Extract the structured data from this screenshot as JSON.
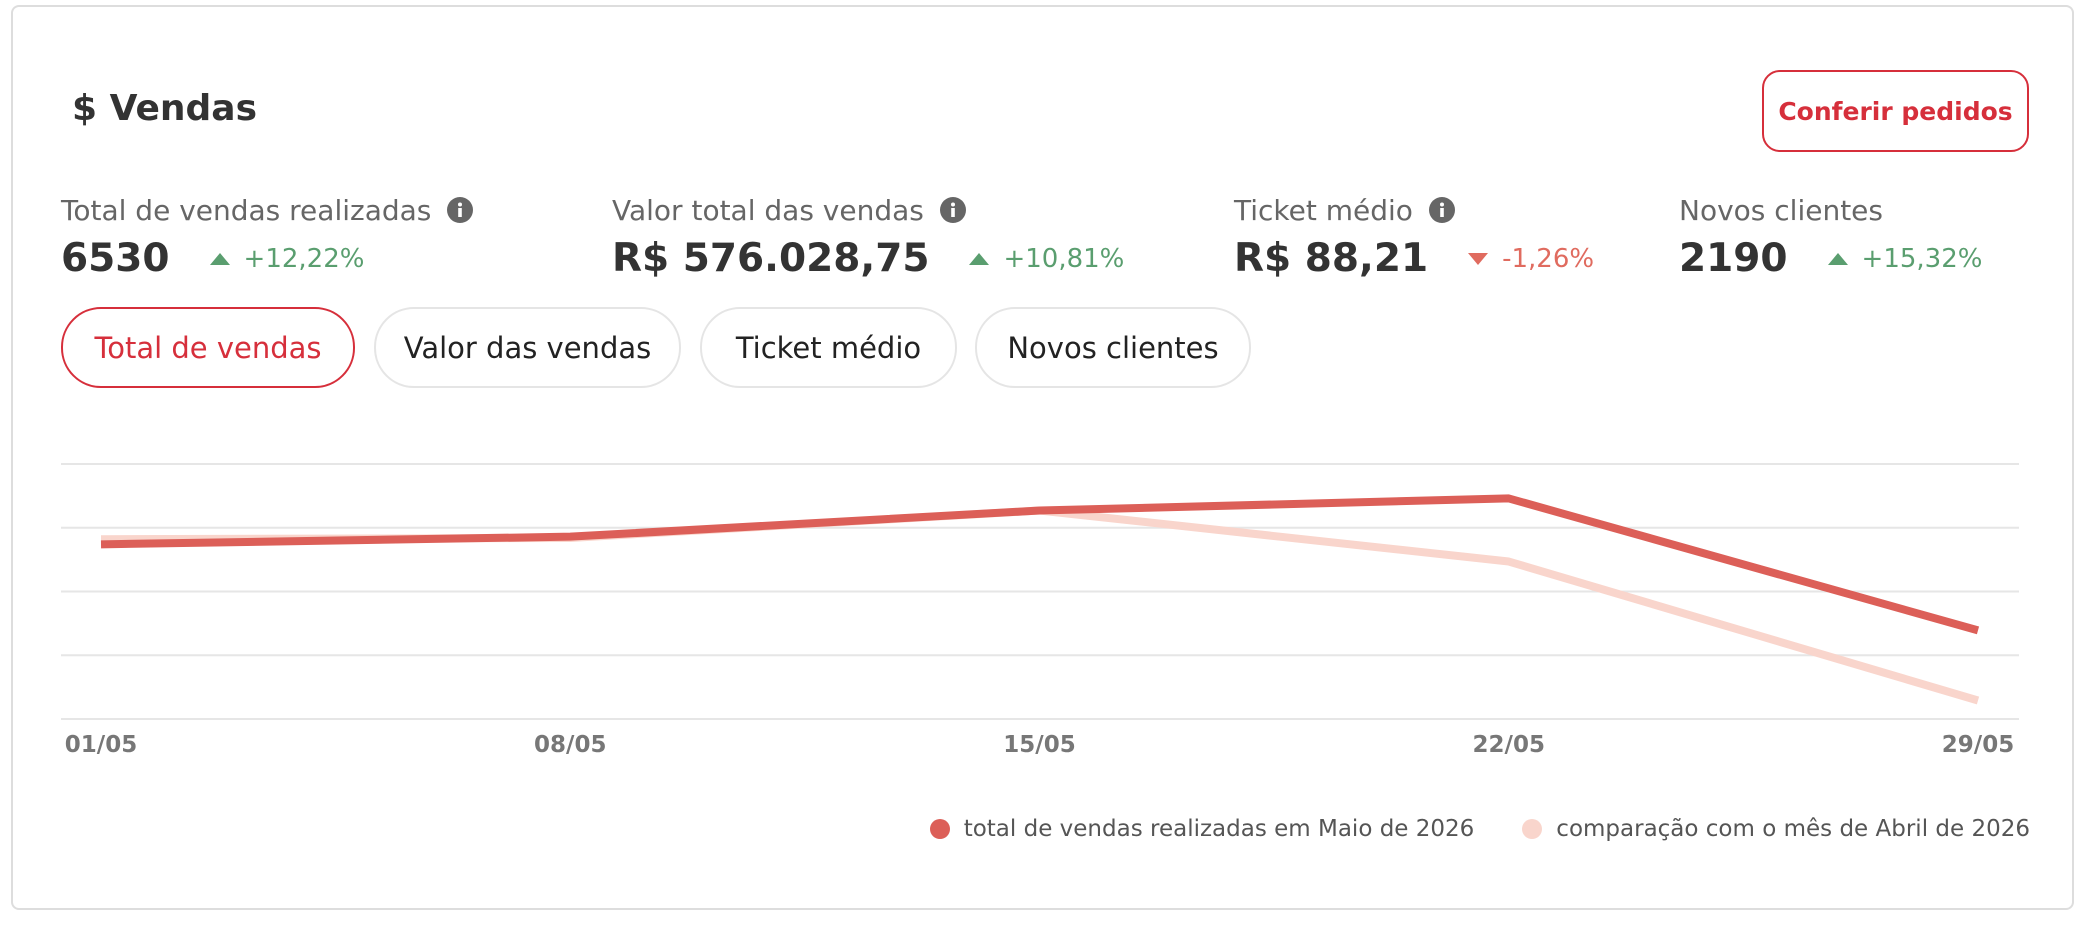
{
  "header": {
    "title": "$ Vendas",
    "button": "Conferir pedidos"
  },
  "kpis": [
    {
      "label": "Total de vendas realizadas",
      "info": true,
      "value": "6530",
      "change": "+12,22%",
      "trend": "up"
    },
    {
      "label": "Valor total das vendas",
      "info": true,
      "value": "R$ 576.028,75",
      "change": "+10,81%",
      "trend": "up"
    },
    {
      "label": "Ticket médio",
      "info": true,
      "value": "R$ 88,21",
      "change": "-1,26%",
      "trend": "down"
    },
    {
      "label": "Novos clientes",
      "info": false,
      "value": "2190",
      "change": "+15,32%",
      "trend": "up"
    }
  ],
  "tabs": [
    {
      "label": "Total de vendas",
      "active": true
    },
    {
      "label": "Valor das vendas",
      "active": false
    },
    {
      "label": "Ticket médio",
      "active": false
    },
    {
      "label": "Novos clientes",
      "active": false
    }
  ],
  "chart_data": {
    "type": "line",
    "categories": [
      "01/05",
      "08/05",
      "15/05",
      "22/05",
      "29/05"
    ],
    "series": [
      {
        "name": "total de vendas realizadas em Maio de 2026",
        "color": "#dc5f58",
        "values": [
          2.74,
          2.86,
          3.27,
          3.46,
          1.39
        ]
      },
      {
        "name": "comparação com o mês de Abril de 2026",
        "color": "#f9d5cc",
        "values": [
          2.82,
          2.84,
          3.27,
          2.47,
          0.29
        ]
      }
    ],
    "ylim": [
      0,
      4
    ],
    "yticks": [
      0,
      1,
      2,
      3,
      4
    ],
    "grid": true
  }
}
